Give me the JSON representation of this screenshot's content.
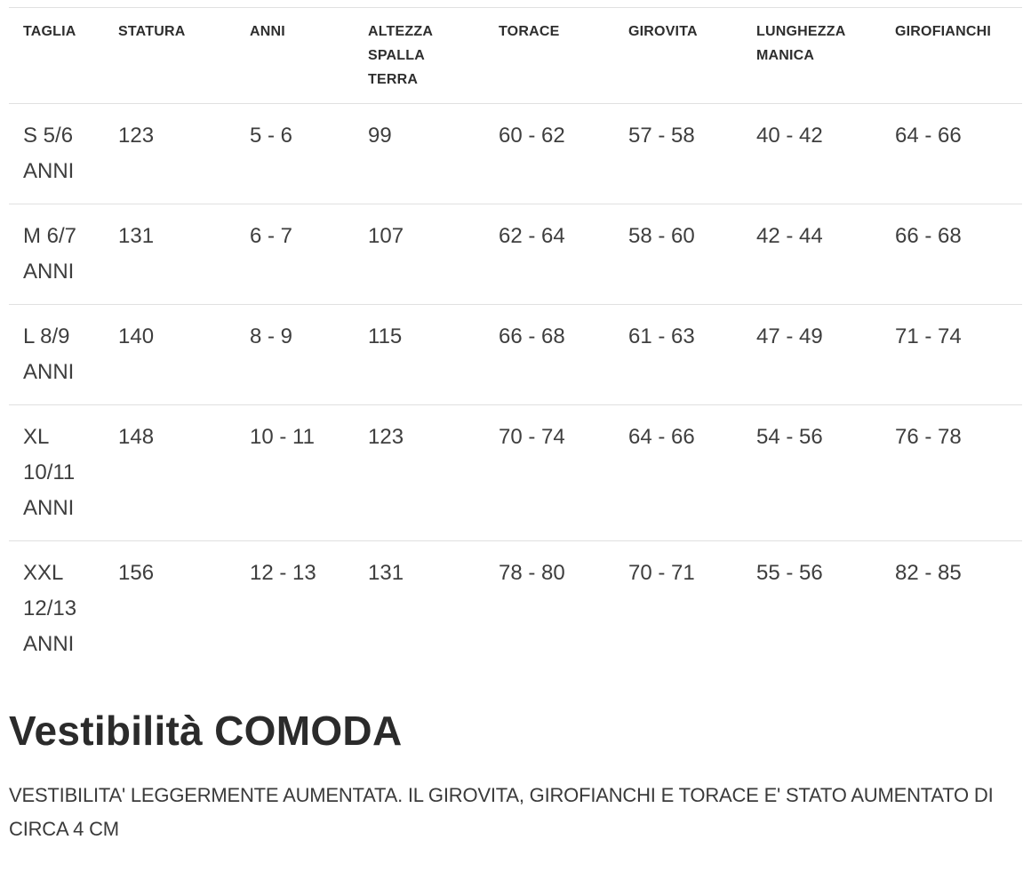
{
  "table": {
    "headers": [
      "TAGLIA",
      "STATURA",
      "ANNI",
      "ALTEZZA SPALLA TERRA",
      "TORACE",
      "GIROVITA",
      "LUNGHEZZA MANICA",
      "GIROFIANCHI"
    ],
    "rows": [
      [
        "S 5/6 ANNI",
        "123",
        "5 - 6",
        "99",
        "60 - 62",
        "57 - 58",
        "40 - 42",
        "64 - 66"
      ],
      [
        "M 6/7 ANNI",
        "131",
        "6 - 7",
        "107",
        "62 - 64",
        "58 - 60",
        "42 - 44",
        "66 - 68"
      ],
      [
        "L 8/9 ANNI",
        "140",
        "8 - 9",
        "115",
        "66 - 68",
        "61 - 63",
        "47 - 49",
        "71 - 74"
      ],
      [
        "XL 10/11 ANNI",
        "148",
        "10 - 11",
        "123",
        "70 - 74",
        "64 - 66",
        "54 - 56",
        "76 - 78"
      ],
      [
        "XXL 12/13 ANNI",
        "156",
        "12 - 13",
        "131",
        "78 - 80",
        "70 - 71",
        "55 - 56",
        "82 - 85"
      ]
    ]
  },
  "fit": {
    "heading": "Vestibilità COMODA",
    "description": "VESTIBILITA' LEGGERMENTE AUMENTATA. IL GIROVITA, GIROFIANCHI E TORACE E' STATO AUMENTATO DI CIRCA 4 CM"
  },
  "colors": {
    "background": "#ffffff",
    "header_text": "#2e2e2e",
    "body_text": "#3e3e3e",
    "heading_text": "#2b2b2b",
    "border": "#e0e0e0"
  }
}
